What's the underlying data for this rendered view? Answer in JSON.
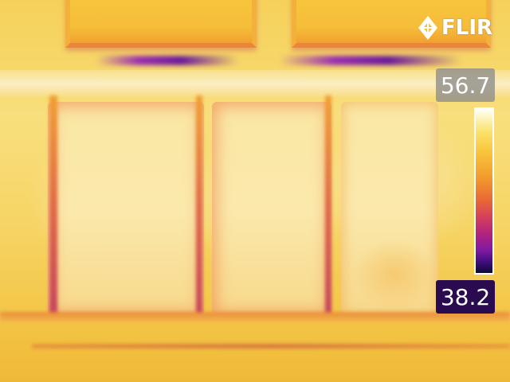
{
  "brand": {
    "logo_text": "FLIR",
    "logo_icon": "flir-diamond-icon"
  },
  "temperature_scale": {
    "max_value": "56.7",
    "min_value": "38.2",
    "palette": "iron"
  },
  "colors": {
    "scale_top": "#ffffff",
    "scale_bottom": "#0e0930",
    "min_label_bg": "#2b0b4f",
    "max_label_bg": "#8c8c8c"
  }
}
